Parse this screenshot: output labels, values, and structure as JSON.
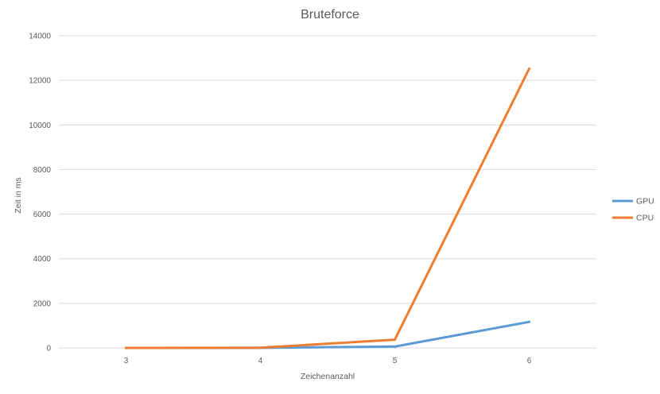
{
  "chart_data": {
    "type": "line",
    "title": "Bruteforce",
    "xlabel": "Zeichenanzahl",
    "ylabel": "Zeit in ms",
    "categories": [
      "3",
      "4",
      "5",
      "6"
    ],
    "ylim": [
      0,
      14000
    ],
    "yticks": [
      0,
      2000,
      4000,
      6000,
      8000,
      10000,
      12000,
      14000
    ],
    "grid": true,
    "legend_position": "right",
    "series": [
      {
        "name": "GPU",
        "color": "#5b9bd5",
        "values": [
          0,
          5,
          60,
          1170
        ]
      },
      {
        "name": "CPU",
        "color": "#ed7d31",
        "values": [
          0,
          10,
          370,
          12520
        ]
      }
    ]
  }
}
